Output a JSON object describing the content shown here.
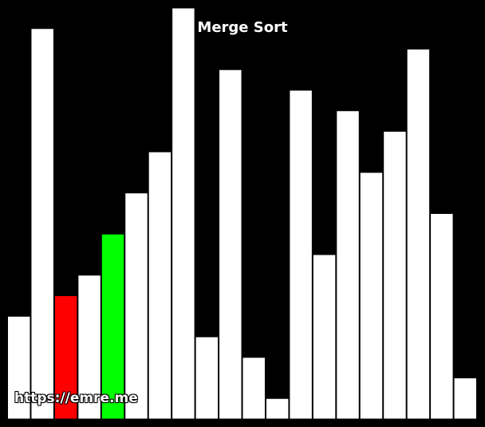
{
  "window": {
    "title": "Merge Sort"
  },
  "watermark": "https://emre.me",
  "colors": {
    "background": "#000000",
    "bar_default": "#ffffff",
    "bar_comparing": "#ff0000",
    "bar_current": "#00ff00"
  },
  "array": {
    "values": [
      5,
      19,
      6,
      7,
      9,
      11,
      13,
      20,
      4,
      17,
      3,
      1,
      16,
      8,
      15,
      12,
      14,
      18,
      10,
      2
    ],
    "max_value": 20,
    "highlight": {
      "2": "comparing",
      "4": "current"
    }
  }
}
